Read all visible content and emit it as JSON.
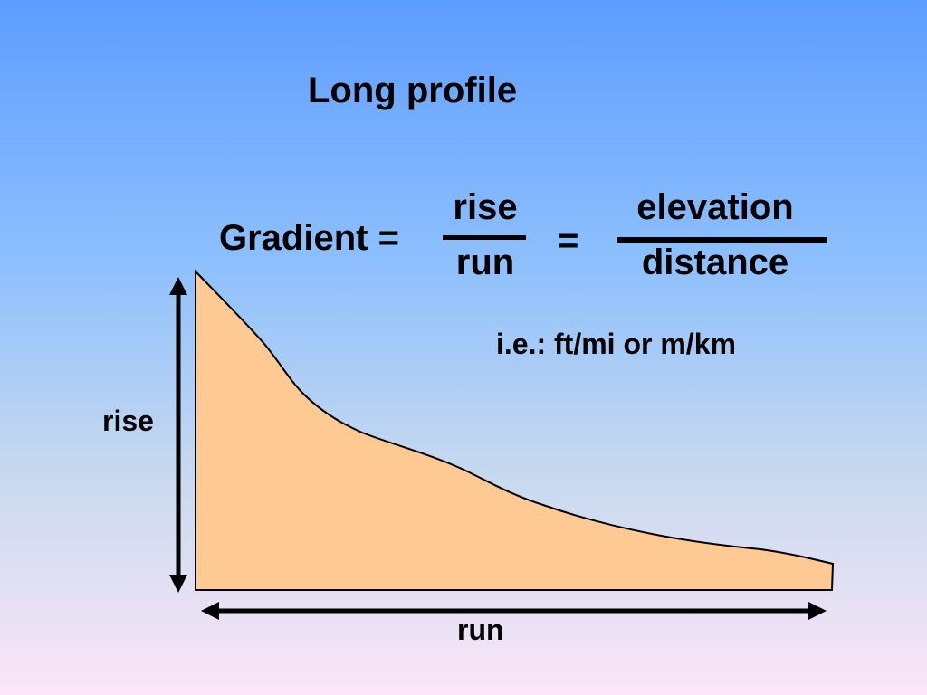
{
  "slide": {
    "title": "Long profile",
    "equation": {
      "lhs": "Gradient =",
      "fraction1": {
        "numerator": "rise",
        "denominator": "run"
      },
      "equals": "=",
      "fraction2": {
        "numerator": "elevation",
        "denominator": "distance"
      }
    },
    "units_note": "i.e.: ft/mi or m/km"
  },
  "diagram": {
    "rise_label": "rise",
    "run_label": "run",
    "fill_color": "#ffc993",
    "outline_color": "#000000"
  }
}
